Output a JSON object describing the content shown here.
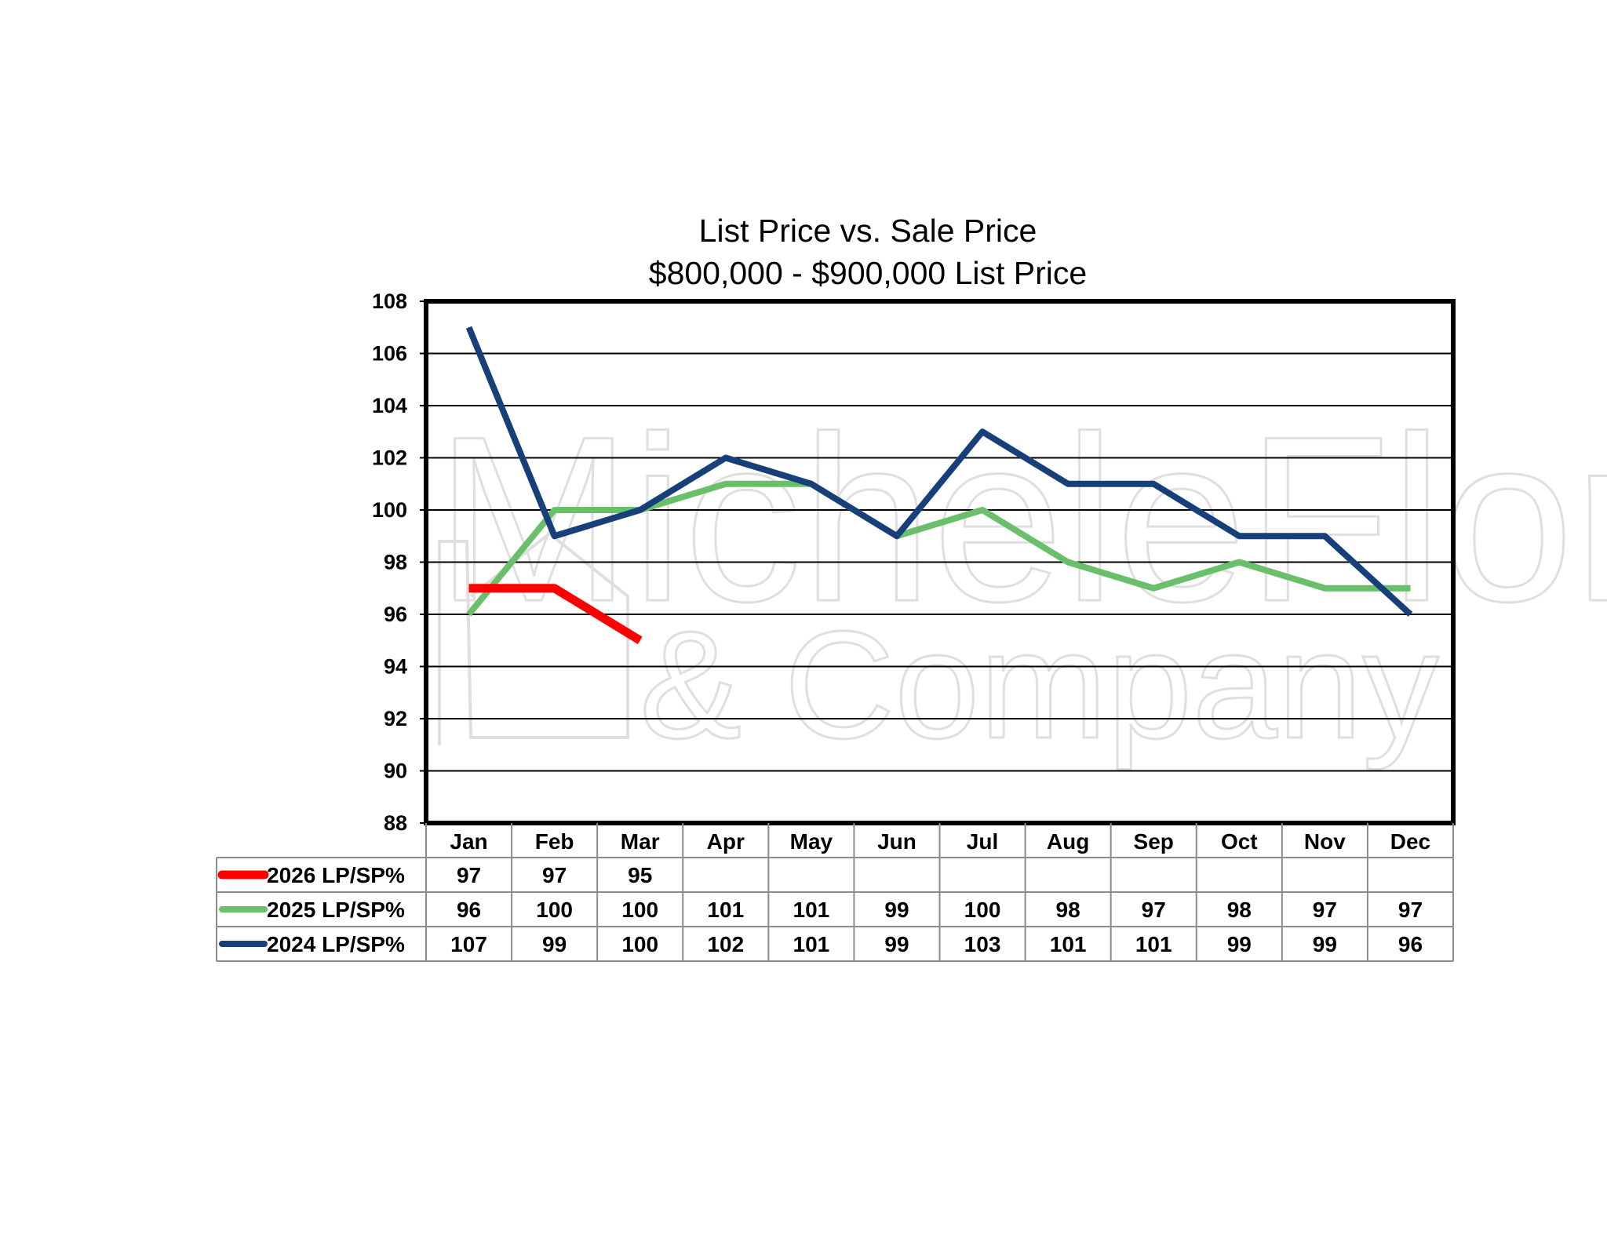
{
  "chart_data": {
    "type": "line",
    "title": "List Price vs. Sale Price",
    "subtitle": "$800,000 - $900,000 List Price",
    "categories": [
      "Jan",
      "Feb",
      "Mar",
      "Apr",
      "May",
      "Jun",
      "Jul",
      "Aug",
      "Sep",
      "Oct",
      "Nov",
      "Dec"
    ],
    "ylim": [
      88,
      108
    ],
    "yticks": [
      "88",
      "90",
      "92",
      "94",
      "96",
      "98",
      "100",
      "102",
      "104",
      "106",
      "108"
    ],
    "grid": true,
    "series": [
      {
        "name": "2026 LP/SP%",
        "color": "#ff0000",
        "values": [
          97,
          97,
          95,
          null,
          null,
          null,
          null,
          null,
          null,
          null,
          null,
          null
        ]
      },
      {
        "name": "2025 LP/SP%",
        "color": "#6abf6a",
        "values": [
          96,
          100,
          100,
          101,
          101,
          99,
          100,
          98,
          97,
          98,
          97,
          97
        ]
      },
      {
        "name": "2024 LP/SP%",
        "color": "#17407a",
        "values": [
          107,
          99,
          100,
          102,
          101,
          99,
          103,
          101,
          101,
          99,
          99,
          96
        ]
      }
    ],
    "table": true
  },
  "watermark": {
    "line1": "MicheleFlory",
    "line2": "& Company"
  }
}
